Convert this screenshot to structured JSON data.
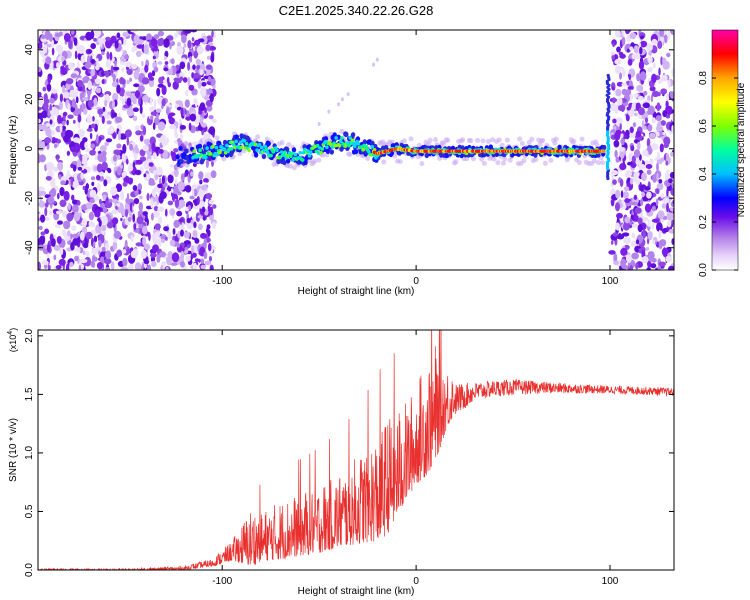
{
  "figure": {
    "title": "C2E1.2025.340.22.26.G28"
  },
  "chart_data": [
    {
      "type": "heatmap",
      "name": "spectrogram",
      "xlabel": "Height of straight line (km)",
      "ylabel": "Frequency (Hz)",
      "xlim": [
        -195,
        133
      ],
      "ylim": [
        -49,
        48
      ],
      "xticks": [
        -100,
        0,
        100
      ],
      "xtick_labels": [
        "-100",
        "0",
        "100"
      ],
      "yticks": [
        -40,
        -20,
        0,
        20,
        40
      ],
      "ytick_labels": [
        "-40",
        "-20",
        "0",
        "20",
        "40"
      ],
      "noise_regions_km": [
        [
          -195,
          -104
        ],
        [
          101,
          133
        ]
      ],
      "signal_trace": {
        "x": [
          -123,
          -110,
          -100,
          -90,
          -80,
          -70,
          -60,
          -50,
          -40,
          -30,
          -20,
          -10,
          0,
          10,
          20,
          30,
          40,
          50,
          60,
          70,
          80,
          90,
          97
        ],
        "y": [
          -3,
          -2,
          0,
          2,
          0,
          -2,
          -3,
          0,
          3,
          2,
          -2,
          0,
          -1,
          -1,
          -1,
          -1,
          -1,
          -1,
          -1,
          -1,
          -1,
          -1,
          -1
        ]
      },
      "spike_km": 100,
      "colorbar": {
        "label": "Normalized spectral amplitude",
        "range": [
          0.0,
          1.0
        ],
        "ticks": [
          0.0,
          0.2,
          0.4,
          0.6,
          0.8
        ],
        "tick_labels": [
          "0.0",
          "0.2",
          "0.4",
          "0.6",
          "0.8"
        ],
        "colors": [
          "#ffffff",
          "#c79cf0",
          "#8a2be2",
          "#0000ff",
          "#00bfff",
          "#00ff7f",
          "#7fff00",
          "#ffff00",
          "#ffa500",
          "#ff0000",
          "#ff00aa"
        ]
      }
    },
    {
      "type": "line",
      "name": "snr",
      "xlabel": "Height of straight line (km)",
      "ylabel": "SNR (10 * v/v)",
      "scale_label": "(x10",
      "scale_exponent": "4",
      "scale_close": ")",
      "xlim": [
        -195,
        133
      ],
      "ylim": [
        0,
        2.05
      ],
      "xticks": [
        -100,
        0,
        100
      ],
      "xtick_labels": [
        "-100",
        "0",
        "100"
      ],
      "yticks": [
        0.0,
        0.5,
        1.0,
        1.5,
        2.0
      ],
      "ytick_labels": [
        "0.0",
        "0.5",
        "1.0",
        "1.5",
        "2.0"
      ],
      "color": "#e8302e",
      "envelope": {
        "x": [
          -195,
          -150,
          -120,
          -105,
          -95,
          -85,
          -80,
          -70,
          -60,
          -50,
          -40,
          -30,
          -20,
          -15,
          -10,
          -5,
          0,
          5,
          10,
          15,
          20,
          30,
          40,
          50,
          60,
          80,
          100,
          120,
          133
        ],
        "base": [
          0.0,
          0.0,
          0.01,
          0.05,
          0.13,
          0.18,
          0.2,
          0.24,
          0.28,
          0.32,
          0.38,
          0.45,
          0.52,
          0.6,
          0.72,
          0.85,
          0.98,
          1.1,
          1.22,
          1.35,
          1.45,
          1.52,
          1.55,
          1.56,
          1.56,
          1.55,
          1.54,
          1.53,
          1.52
        ],
        "amp": [
          0.01,
          0.01,
          0.02,
          0.04,
          0.1,
          0.3,
          0.25,
          0.3,
          0.32,
          0.35,
          0.38,
          0.45,
          0.55,
          0.6,
          0.55,
          0.5,
          0.5,
          0.6,
          0.6,
          0.35,
          0.2,
          0.12,
          0.1,
          0.1,
          0.08,
          0.06,
          0.05,
          0.05,
          0.05
        ]
      }
    }
  ]
}
